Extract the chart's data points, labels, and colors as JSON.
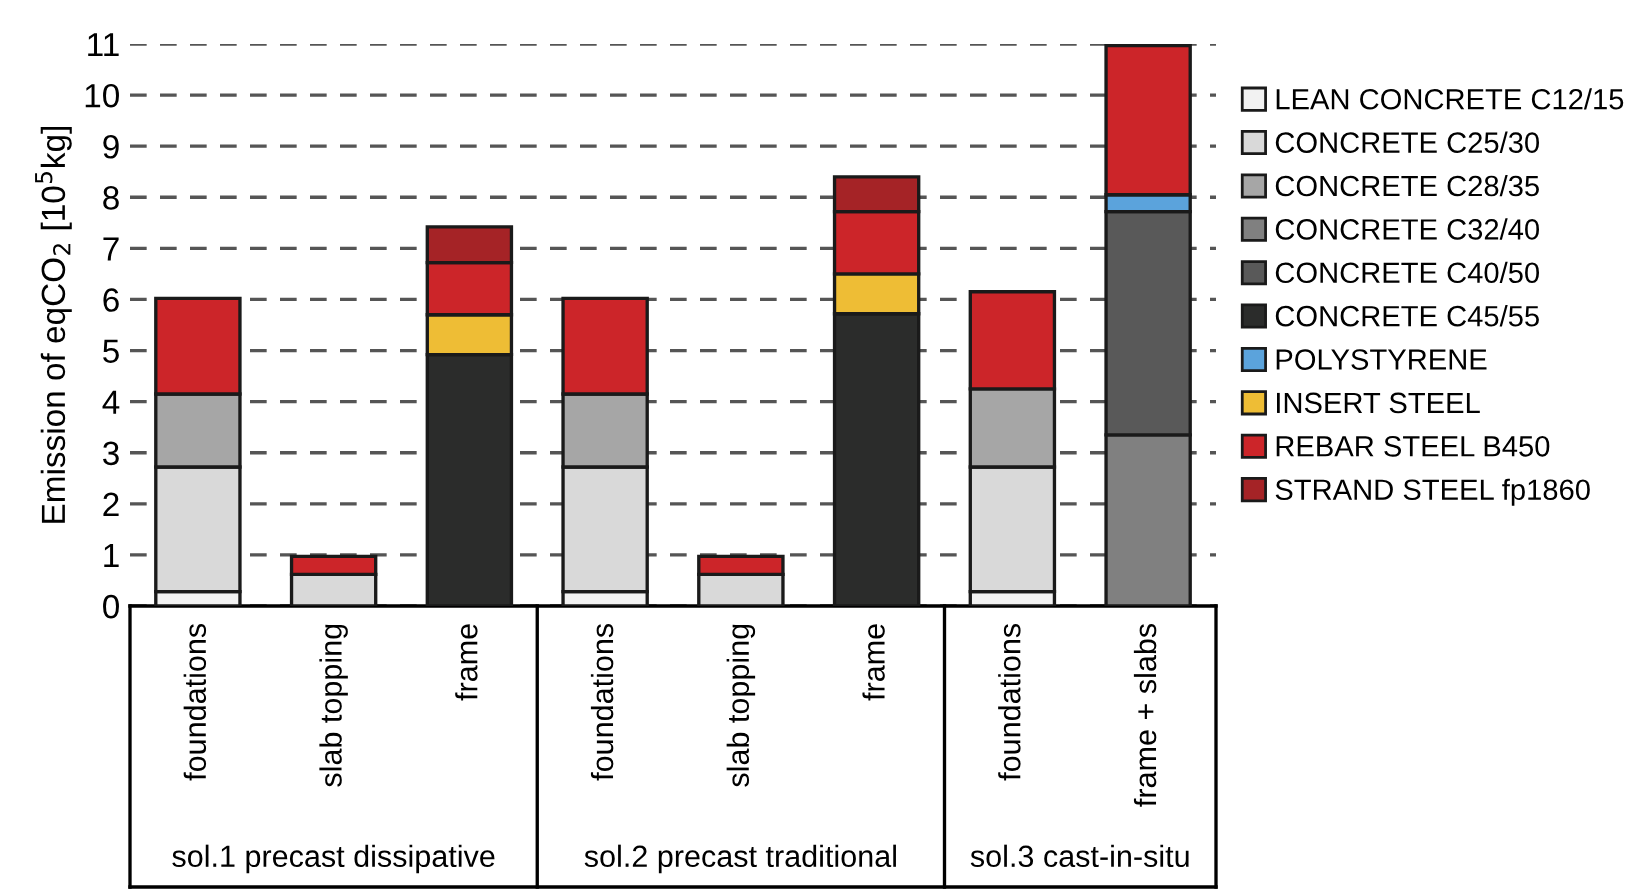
{
  "chart_data": {
    "type": "bar",
    "stacked": true,
    "ylabel": "Emission of eqCO$_{2}$ [10$^{5}$kg]",
    "categories": [
      "foundations",
      "slab topping",
      "frame",
      "foundations",
      "slab topping",
      "frame",
      "foundations",
      "frame + slabs"
    ],
    "series": [
      {
        "name": "LEAN CONCRETE C12/15",
        "color": "#f2f2f2",
        "values": [
          0.28,
          null,
          null,
          0.28,
          null,
          null,
          0.28,
          null
        ]
      },
      {
        "name": "CONCRETE C25/30",
        "color": "#d9d9d9",
        "values": [
          2.44,
          0.62,
          null,
          2.44,
          0.62,
          null,
          2.44,
          null
        ]
      },
      {
        "name": "CONCRETE C28/35",
        "color": "#a6a6a6",
        "values": [
          1.43,
          null,
          null,
          1.43,
          null,
          null,
          1.53,
          null
        ]
      },
      {
        "name": "CONCRETE C32/40",
        "color": "#808080",
        "values": [
          null,
          null,
          null,
          null,
          null,
          null,
          null,
          3.35
        ]
      },
      {
        "name": "CONCRETE C40/50",
        "color": "#595959",
        "values": [
          null,
          null,
          null,
          null,
          null,
          null,
          null,
          4.37
        ]
      },
      {
        "name": "CONCRETE C45/55",
        "color": "#2b2c2b",
        "values": [
          null,
          null,
          4.92,
          null,
          null,
          5.72,
          null,
          null
        ]
      },
      {
        "name": "POLYSTYRENE",
        "color": "#5ba3dc",
        "values": [
          null,
          null,
          null,
          null,
          null,
          null,
          null,
          0.33
        ]
      },
      {
        "name": "INSERT STEEL",
        "color": "#eebd35",
        "values": [
          null,
          null,
          0.78,
          null,
          null,
          0.78,
          null,
          null
        ]
      },
      {
        "name": "REBAR STEEL B450",
        "color": "#cc2529",
        "values": [
          1.87,
          0.35,
          1.02,
          1.87,
          0.35,
          1.22,
          1.9,
          2.92
        ]
      },
      {
        "name": "STRAND STEEL fp1860",
        "color": "#a52326",
        "values": [
          null,
          null,
          0.7,
          null,
          null,
          0.68,
          null,
          null
        ]
      }
    ],
    "annotations": [
      "sol.1 precast dissipative",
      "sol.2 precast traditional",
      "sol.3 cast-in-situ"
    ],
    "ylim": [
      0,
      11
    ],
    "yticks": [
      0,
      1,
      2,
      3,
      4,
      5,
      6,
      7,
      8,
      9,
      10,
      11
    ],
    "grid": "y",
    "legend": "right"
  }
}
